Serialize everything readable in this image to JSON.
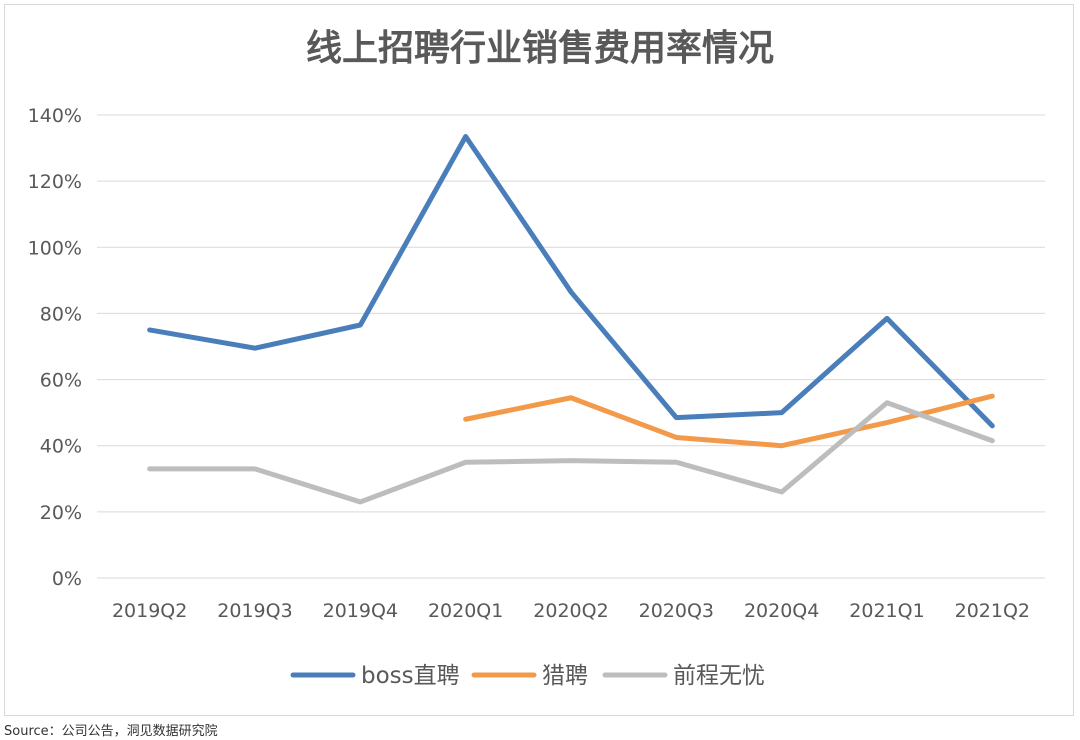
{
  "chart_data": {
    "type": "line",
    "title": "线上招聘行业销售费用率情况",
    "categories": [
      "2019Q2",
      "2019Q3",
      "2019Q4",
      "2020Q1",
      "2020Q2",
      "2020Q3",
      "2020Q4",
      "2021Q1",
      "2021Q2"
    ],
    "yticks": [
      "0%",
      "20%",
      "40%",
      "60%",
      "80%",
      "100%",
      "120%",
      "140%"
    ],
    "ylim": [
      0,
      140
    ],
    "ylabel": "",
    "xlabel": "",
    "grid": true,
    "legend": "bottom",
    "series": [
      {
        "name": "boss直聘",
        "color": "#4a7ebb",
        "values": [
          75,
          69.5,
          76.5,
          133.5,
          86.5,
          48.5,
          50,
          78.5,
          46
        ]
      },
      {
        "name": "猎聘",
        "color": "#f39a4a",
        "values": [
          null,
          null,
          null,
          48,
          54.5,
          42.5,
          40,
          47,
          55
        ]
      },
      {
        "name": "前程无忧",
        "color": "#bdbdbd",
        "values": [
          33,
          33,
          23,
          35,
          35.5,
          35,
          26,
          53,
          41.5
        ]
      }
    ]
  },
  "source": "Source：公司公告，洞见数据研究院"
}
